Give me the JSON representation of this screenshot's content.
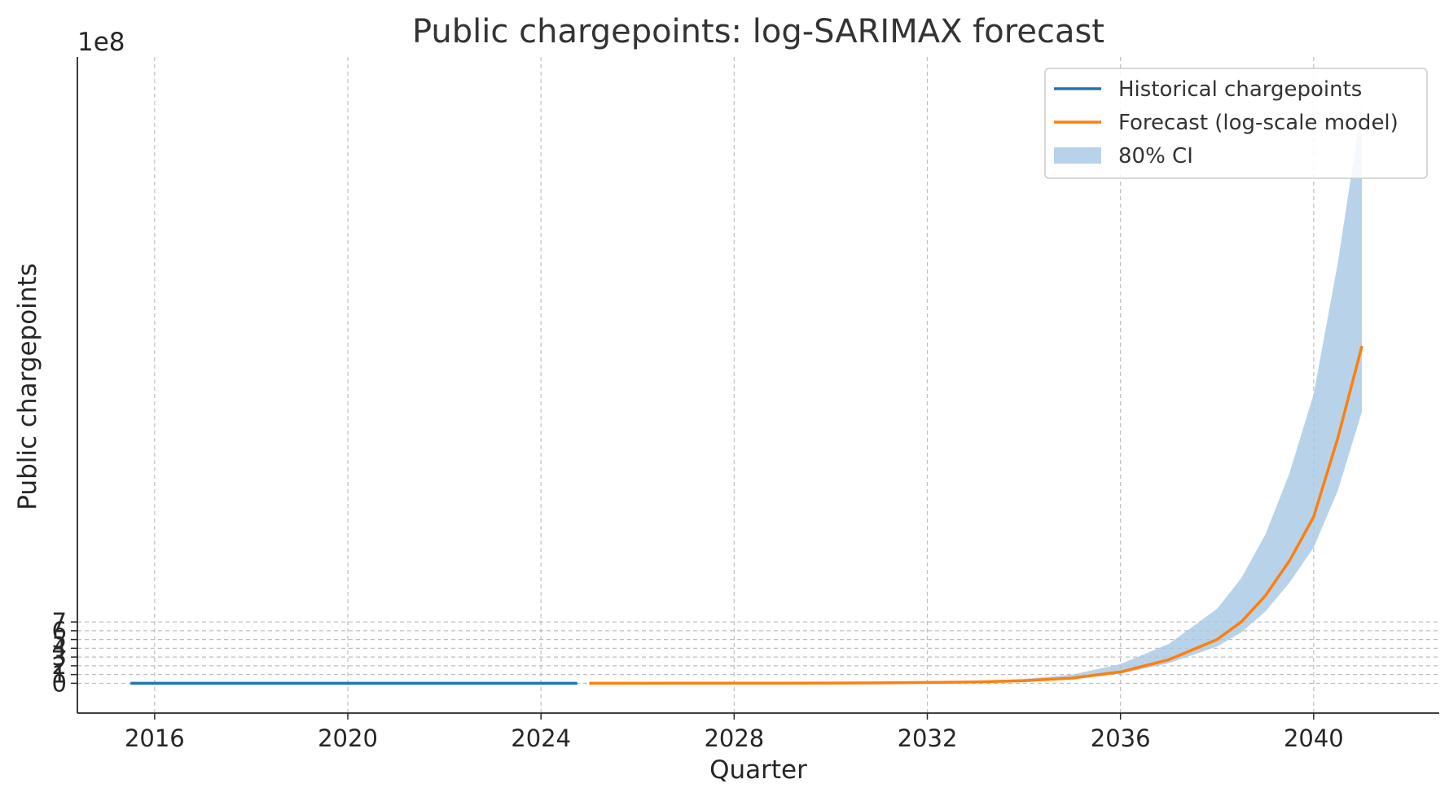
{
  "chart_data": {
    "type": "line",
    "title": "Public chargepoints: log-SARIMAX forecast",
    "xlabel": "Quarter",
    "ylabel": "Public chargepoints",
    "offset_label": "1e8",
    "xlim": [
      2014.4,
      2042.6
    ],
    "ylim": [
      -3.4,
      71.5
    ],
    "x_ticks": [
      2016,
      2020,
      2024,
      2028,
      2032,
      2036,
      2040
    ],
    "x_tick_labels": [
      "2016",
      "2020",
      "2024",
      "2028",
      "2032",
      "2036",
      "2040"
    ],
    "y_ticks": [
      0,
      1,
      2,
      3,
      4,
      5,
      6,
      7
    ],
    "y_tick_labels": [
      "0",
      "1",
      "2",
      "3",
      "4",
      "5",
      "6",
      "7"
    ],
    "y_tick_values_scaled_by": 100000000,
    "grid": true,
    "legend_position": "top-right",
    "colors": {
      "historical": "#1f77b4",
      "forecast": "#ff7f0e",
      "ci": "#a6c8e3"
    },
    "series": [
      {
        "name": "Historical chargepoints",
        "kind": "line",
        "x": [
          2015.5,
          2016,
          2017,
          2018,
          2019,
          2020,
          2021,
          2022,
          2023,
          2024,
          2024.75
        ],
        "y": [
          0.0001,
          0.0001,
          0.0002,
          0.0003,
          0.0004,
          0.0005,
          0.0007,
          0.001,
          0.0013,
          0.0016,
          0.0018
        ]
      },
      {
        "name": "Forecast (log-scale model)",
        "kind": "line",
        "x": [
          2025,
          2026,
          2027,
          2028,
          2029,
          2030,
          2031,
          2032,
          2033,
          2034,
          2035,
          2036,
          2037,
          2038,
          2038.5,
          2039,
          2039.5,
          2040,
          2040.5,
          2041
        ],
        "y": [
          0.002,
          0.0035,
          0.006,
          0.01,
          0.018,
          0.03,
          0.05,
          0.09,
          0.16,
          0.3,
          0.6,
          1.3,
          2.7,
          5.0,
          7.0,
          10.0,
          14.0,
          19.0,
          28.0,
          38.5
        ]
      },
      {
        "name": "80% CI",
        "kind": "band",
        "x": [
          2025,
          2026,
          2027,
          2028,
          2029,
          2030,
          2031,
          2032,
          2033,
          2034,
          2035,
          2036,
          2037,
          2038,
          2038.5,
          2039,
          2039.5,
          2040,
          2040.5,
          2041
        ],
        "lower": [
          0.0015,
          0.0025,
          0.0045,
          0.008,
          0.014,
          0.024,
          0.04,
          0.07,
          0.13,
          0.24,
          0.5,
          1.1,
          2.3,
          4.2,
          5.8,
          8.2,
          11.5,
          15.5,
          22.0,
          31.0
        ],
        "upper": [
          0.0025,
          0.005,
          0.008,
          0.013,
          0.023,
          0.04,
          0.07,
          0.13,
          0.25,
          0.5,
          1.0,
          2.2,
          4.5,
          8.5,
          12.0,
          17.0,
          24.0,
          33.0,
          48.0,
          66.0
        ]
      }
    ]
  }
}
